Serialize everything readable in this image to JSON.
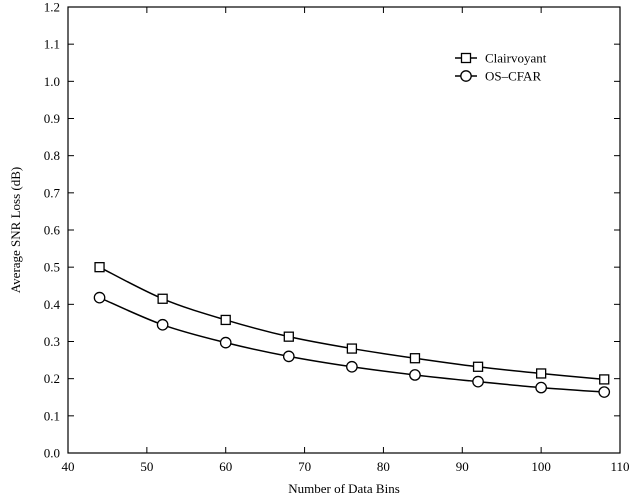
{
  "chart_data": {
    "type": "line",
    "title": "",
    "xlabel": "Number of Data Bins",
    "ylabel": "Average SNR Loss (dB)",
    "xlim": [
      40,
      110
    ],
    "ylim": [
      0.0,
      1.2
    ],
    "xticks": [
      40,
      50,
      60,
      70,
      80,
      90,
      100,
      110
    ],
    "xtick_labels": [
      "40",
      "50",
      "60",
      "70",
      "80",
      "90",
      "100",
      "110"
    ],
    "yticks": [
      0.0,
      0.1,
      0.2,
      0.3,
      0.4,
      0.5,
      0.6,
      0.7,
      0.8,
      0.9,
      1.0,
      1.1,
      1.2
    ],
    "ytick_labels": [
      "0.0",
      "0.1",
      "0.2",
      "0.3",
      "0.4",
      "0.5",
      "0.6",
      "0.7",
      "0.8",
      "0.9",
      "1.0",
      "1.1",
      "1.2"
    ],
    "grid": false,
    "legend_position": "top-right",
    "x": [
      44,
      52,
      60,
      68,
      76,
      84,
      92,
      100,
      108
    ],
    "series": [
      {
        "name": "Clairvoyant",
        "marker": "square",
        "values": [
          0.5,
          0.415,
          0.358,
          0.313,
          0.281,
          0.255,
          0.232,
          0.214,
          0.198
        ]
      },
      {
        "name": "OS–CFAR",
        "marker": "circle",
        "values": [
          0.418,
          0.345,
          0.297,
          0.26,
          0.232,
          0.21,
          0.192,
          0.176,
          0.164
        ]
      }
    ],
    "colors": {
      "line": "#000000",
      "background": "#ffffff"
    }
  }
}
